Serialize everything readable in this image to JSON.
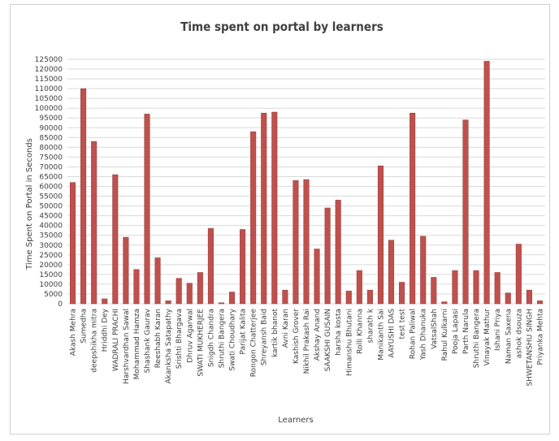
{
  "chart_data": {
    "type": "bar",
    "title": "Time spent on portal by learners",
    "xlabel": "Learners",
    "ylabel": "Time Spent on Portal in Seconds",
    "ylim": [
      0,
      125000
    ],
    "ytick_step": 5000,
    "grid": true,
    "bar_color": "#c0504d",
    "categories": [
      "Akash Mehra",
      "Sumedha",
      "deepshikha mitra",
      "Hriddhi Dey",
      "WADRALI PRACHI",
      "Harshvardhan Sawal",
      "Mohammad Hamza",
      "Shashank Gaurav",
      "Reeshabh Karan",
      "Akanksha Satapathy",
      "Srishti Bhargava",
      "Dhruv Agarwal",
      "SWATI MUKHERJEE",
      "Snigdh Chandra",
      "Shruthi Bangera",
      "Swati Choudhary",
      "Parijat Kalita",
      "Rongon Chatterjee",
      "Shreyansh Baid",
      "kartik bhanot",
      "Avni Karan",
      "Kashish Grover",
      "Nikhil Prakash Rai",
      "Akshay Anand",
      "SAAKSHI GUSAIN",
      "harsha kosta",
      "Himanshu Bhutani",
      "Rolli Khanna",
      "sharath k",
      "Manikanth Sai",
      "AAYUSHI DAS",
      "test test",
      "Rohan Paliwal",
      "Yash Dhanuka",
      "VatsalShah",
      "Rahul Kulkarni",
      "Pooja Lapasi",
      "Parth Narula",
      "Shruthi Bangera",
      "Vinayak Mathur",
      "Ishani Priya",
      "Naman Saxena",
      "ashok dsouza",
      "SHWETANSHU SINGH",
      "Priyanka Mehta"
    ],
    "values": [
      62000,
      110000,
      83000,
      2500,
      66000,
      34000,
      17500,
      97000,
      23500,
      1500,
      13000,
      10500,
      16000,
      38500,
      500,
      6000,
      38000,
      88000,
      97500,
      98000,
      7000,
      63000,
      63500,
      28000,
      49000,
      53000,
      6500,
      17000,
      7000,
      70500,
      32500,
      11000,
      97500,
      34500,
      13500,
      1000,
      17000,
      94000,
      17000,
      124000,
      16000,
      5500,
      30500,
      7000,
      1500
    ]
  }
}
